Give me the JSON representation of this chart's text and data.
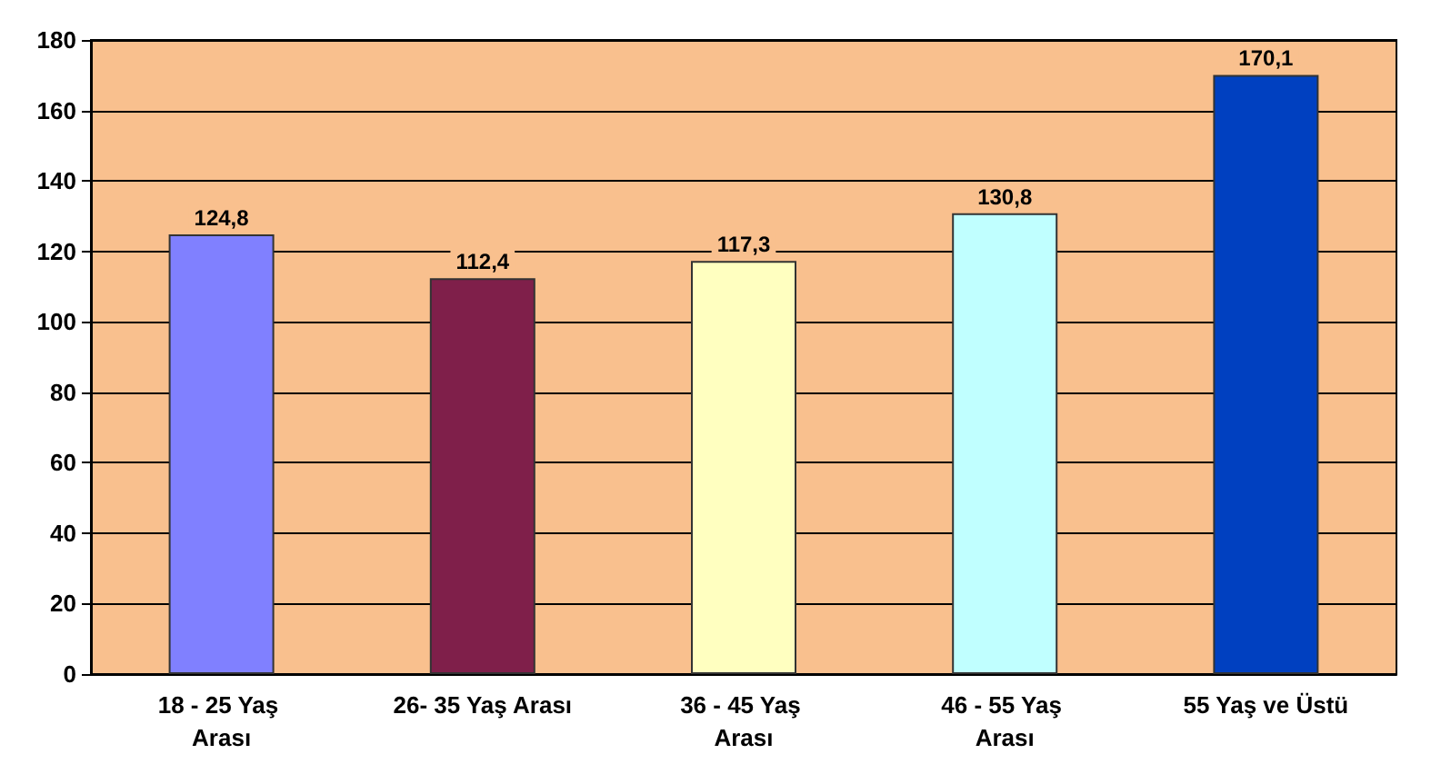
{
  "chart_data": {
    "type": "bar",
    "categories": [
      "18 - 25 Yaş Arası",
      "26- 35 Yaş Arası",
      "36 - 45 Yaş Arası",
      "46 - 55 Yaş Arası",
      "55 Yaş ve Üstü"
    ],
    "values": [
      124.8,
      112.4,
      117.3,
      130.8,
      170.1
    ],
    "colors": [
      "#8080ff",
      "#7f1f4a",
      "#ffffc0",
      "#c0ffff",
      "#0040c0"
    ],
    "value_labels": [
      "124,8",
      "112,4",
      "117,3",
      "130,8",
      "170,1"
    ],
    "ylim": [
      0,
      180
    ],
    "yticks": [
      0,
      20,
      40,
      60,
      80,
      100,
      120,
      140,
      160,
      180
    ],
    "grid": "y"
  }
}
